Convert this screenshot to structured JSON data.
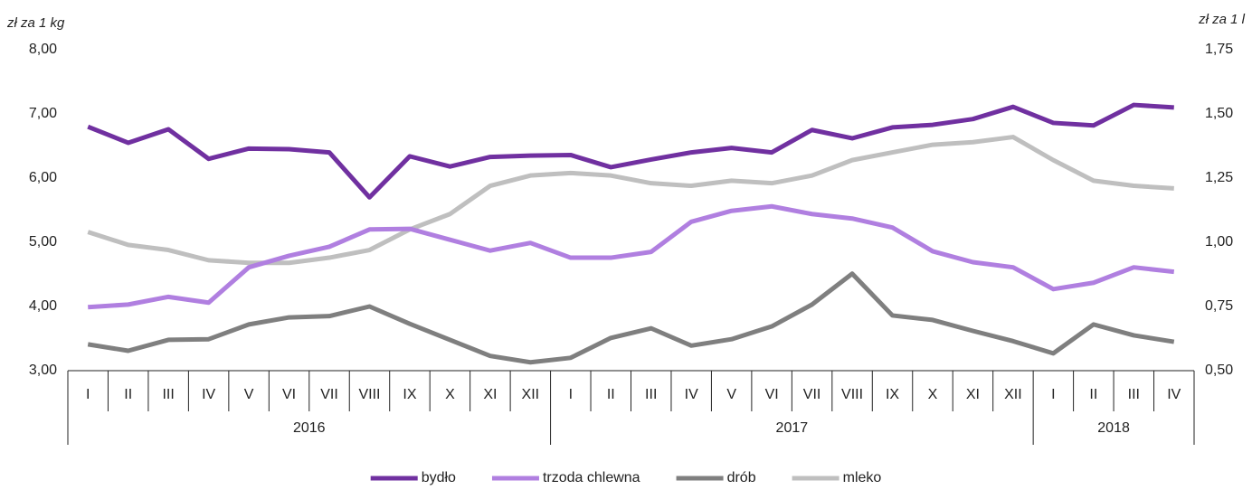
{
  "chart_data": {
    "type": "line",
    "y_axis_title": "zł za 1 kg",
    "y2_axis_title": "zł za 1 l",
    "categories": [
      "I",
      "II",
      "III",
      "IV",
      "V",
      "VI",
      "VII",
      "VIII",
      "IX",
      "X",
      "XI",
      "XII",
      "I",
      "II",
      "III",
      "IV",
      "V",
      "VI",
      "VII",
      "VIII",
      "IX",
      "X",
      "XI",
      "XII",
      "I",
      "II",
      "III",
      "IV"
    ],
    "category_groups": [
      {
        "label": "2016",
        "count": 12
      },
      {
        "label": "2017",
        "count": 12
      },
      {
        "label": "2018",
        "count": 4
      }
    ],
    "ylim": [
      3,
      8
    ],
    "yticks": [
      {
        "value": 3,
        "label": "3,00"
      },
      {
        "value": 4,
        "label": "4,00"
      },
      {
        "value": 5,
        "label": "5,00"
      },
      {
        "value": 6,
        "label": "6,00"
      },
      {
        "value": 7,
        "label": "7,00"
      },
      {
        "value": 8,
        "label": "8,00"
      }
    ],
    "y2lim": [
      0.5,
      1.75
    ],
    "y2ticks": [
      {
        "value": 0.5,
        "label": "0,50"
      },
      {
        "value": 0.75,
        "label": "0,75"
      },
      {
        "value": 1,
        "label": "1,00"
      },
      {
        "value": 1.25,
        "label": "1,25"
      },
      {
        "value": 1.5,
        "label": "1,50"
      },
      {
        "value": 1.75,
        "label": "1,75"
      }
    ],
    "grid": false,
    "legend": "bottom",
    "series": [
      {
        "name": "bydło",
        "color": "#7030a0",
        "values": [
          6.8,
          6.55,
          6.76,
          6.3,
          6.46,
          6.45,
          6.4,
          5.7,
          6.34,
          6.18,
          6.33,
          6.35,
          6.36,
          6.17,
          6.29,
          6.4,
          6.47,
          6.4,
          6.75,
          6.62,
          6.79,
          6.83,
          6.92,
          7.11,
          6.86,
          6.82,
          7.14,
          7.1
        ]
      },
      {
        "name": "trzoda chlewna",
        "color": "#b07fe0",
        "values": [
          3.99,
          4.03,
          4.15,
          4.06,
          4.61,
          4.79,
          4.93,
          5.2,
          5.21,
          5.04,
          4.87,
          4.99,
          4.76,
          4.76,
          4.85,
          5.32,
          5.49,
          5.56,
          5.44,
          5.37,
          5.23,
          4.86,
          4.69,
          4.61,
          4.27,
          4.37,
          4.61,
          4.54
        ]
      },
      {
        "name": "drób",
        "color": "#7f7f7f",
        "values": [
          3.41,
          3.31,
          3.48,
          3.49,
          3.72,
          3.83,
          3.85,
          4.0,
          3.73,
          3.48,
          3.23,
          3.13,
          3.2,
          3.51,
          3.66,
          3.39,
          3.49,
          3.69,
          4.03,
          4.51,
          3.86,
          3.79,
          3.62,
          3.46,
          3.27,
          3.72,
          3.55,
          3.45
        ]
      },
      {
        "name": "mleko",
        "color": "#bfbfbf",
        "axis": "y2",
        "values": [
          1.04,
          0.99,
          0.97,
          0.93,
          0.92,
          0.92,
          0.94,
          0.97,
          1.05,
          1.11,
          1.22,
          1.26,
          1.27,
          1.26,
          1.23,
          1.22,
          1.24,
          1.23,
          1.26,
          1.32,
          1.35,
          1.38,
          1.39,
          1.41,
          1.32,
          1.24,
          1.22,
          1.21
        ]
      }
    ]
  }
}
